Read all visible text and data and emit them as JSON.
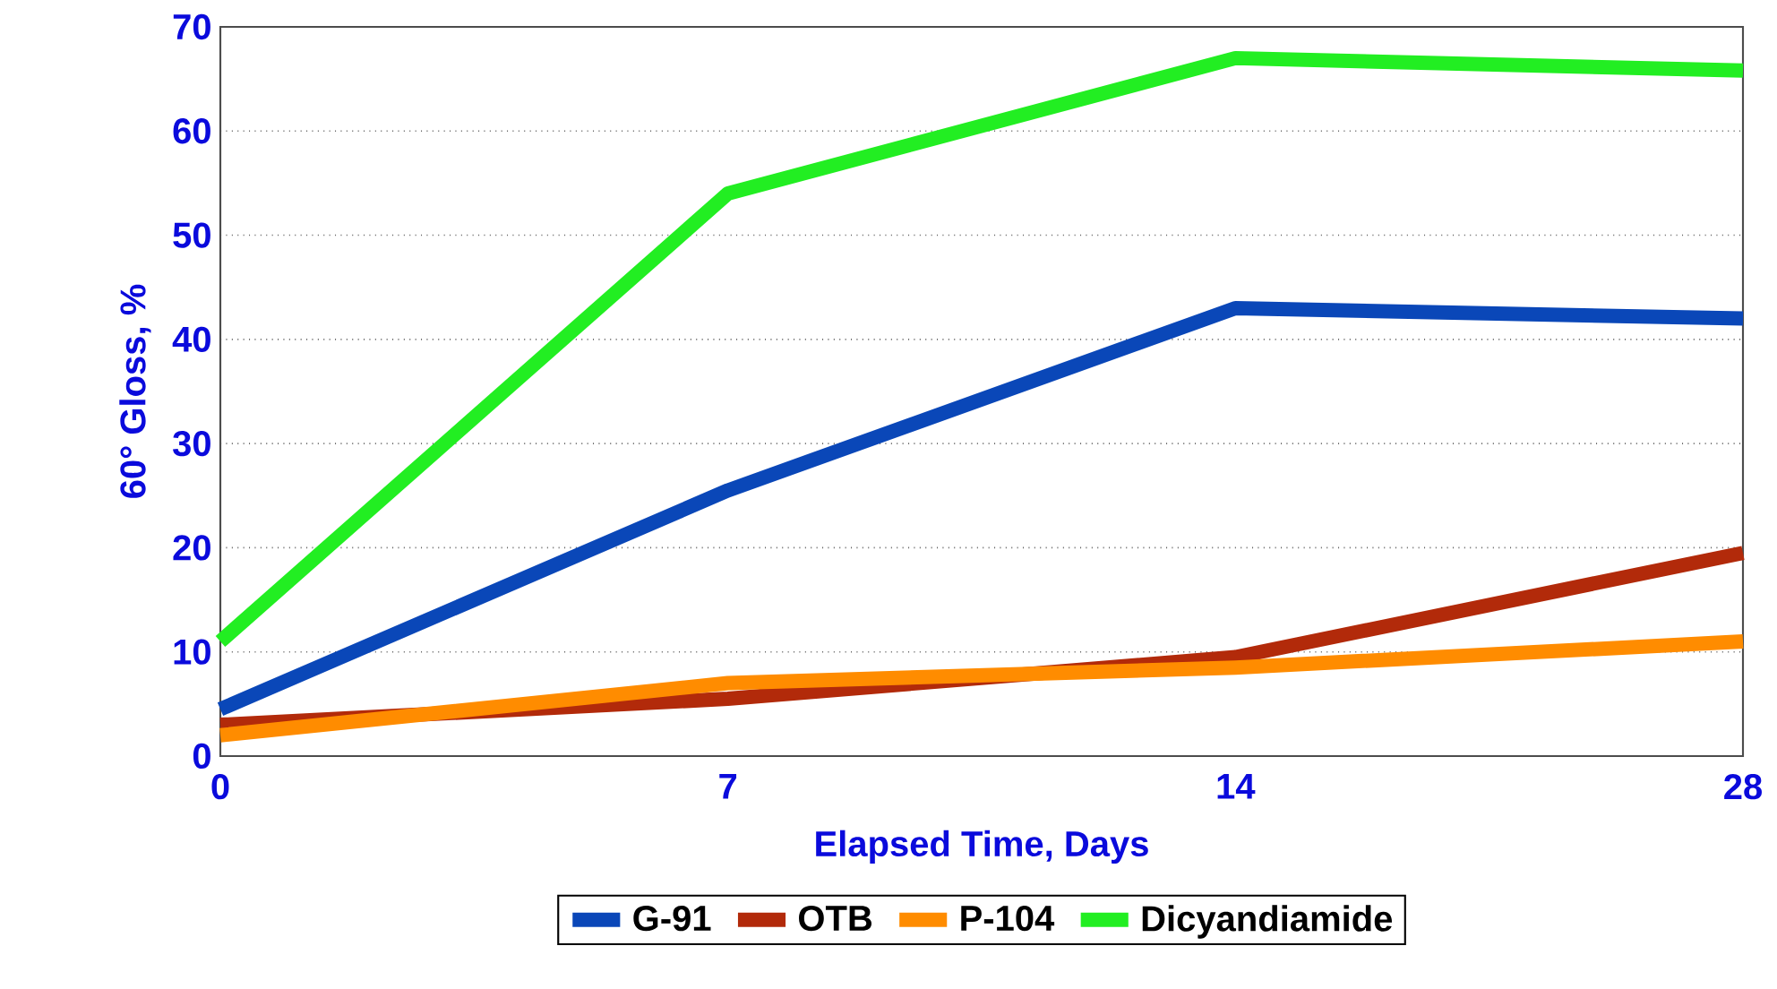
{
  "chart_data": {
    "type": "line",
    "xlabel": "Elapsed Time, Days",
    "ylabel": "60° Gloss, %",
    "categories": [
      "0",
      "7",
      "14",
      "28"
    ],
    "series": [
      {
        "name": "G-91",
        "color": "#0a47b8",
        "values": [
          4.5,
          25.5,
          43,
          42
        ]
      },
      {
        "name": "OTB",
        "color": "#b22a0a",
        "values": [
          3,
          5.5,
          9.5,
          19.5
        ]
      },
      {
        "name": "P-104",
        "color": "#ff8c00",
        "values": [
          2,
          7,
          8.5,
          11
        ]
      },
      {
        "name": "Dicyandiamide",
        "color": "#22ee22",
        "values": [
          11,
          54,
          67,
          65.8
        ]
      }
    ],
    "ylim": [
      0,
      70
    ],
    "yticks": [
      0,
      10,
      20,
      30,
      40,
      50,
      60,
      70
    ],
    "grid": "y",
    "legend": "bottom",
    "marker": "none",
    "line_style": "solid"
  }
}
